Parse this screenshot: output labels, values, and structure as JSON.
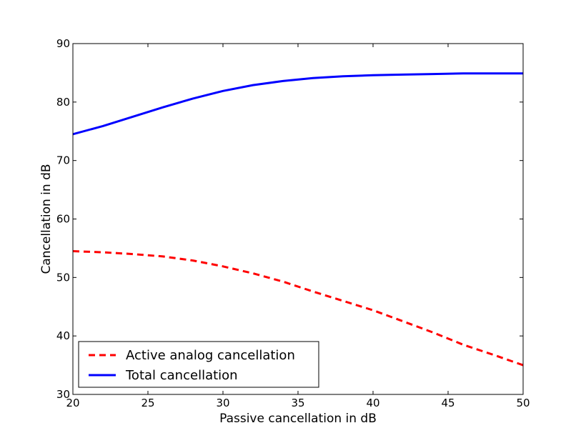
{
  "chart_data": {
    "type": "line",
    "title": "",
    "xlabel": "Passive cancellation in dB",
    "ylabel": "Cancellation in dB",
    "xlim": [
      20,
      50
    ],
    "ylim": [
      30,
      90
    ],
    "xticks": [
      "20",
      "25",
      "30",
      "35",
      "40",
      "45",
      "50"
    ],
    "yticks": [
      "30",
      "40",
      "50",
      "60",
      "70",
      "80",
      "90"
    ],
    "grid": false,
    "legend_position": "bottom-left",
    "x": [
      20,
      22,
      24,
      26,
      28,
      30,
      32,
      34,
      36,
      38,
      40,
      42,
      44,
      46,
      48,
      50
    ],
    "series": [
      {
        "name": "Active analog cancellation",
        "color": "#ff0000",
        "style": "dashed",
        "values": [
          54.5,
          54.3,
          54.0,
          53.6,
          52.9,
          51.9,
          50.7,
          49.3,
          47.6,
          46.0,
          44.4,
          42.5,
          40.6,
          38.5,
          36.8,
          35.0
        ]
      },
      {
        "name": "Total cancellation",
        "color": "#0000ff",
        "style": "solid",
        "values": [
          74.5,
          75.9,
          77.5,
          79.1,
          80.6,
          81.9,
          82.9,
          83.6,
          84.1,
          84.4,
          84.6,
          84.7,
          84.8,
          84.9,
          84.9,
          84.9
        ]
      }
    ]
  }
}
